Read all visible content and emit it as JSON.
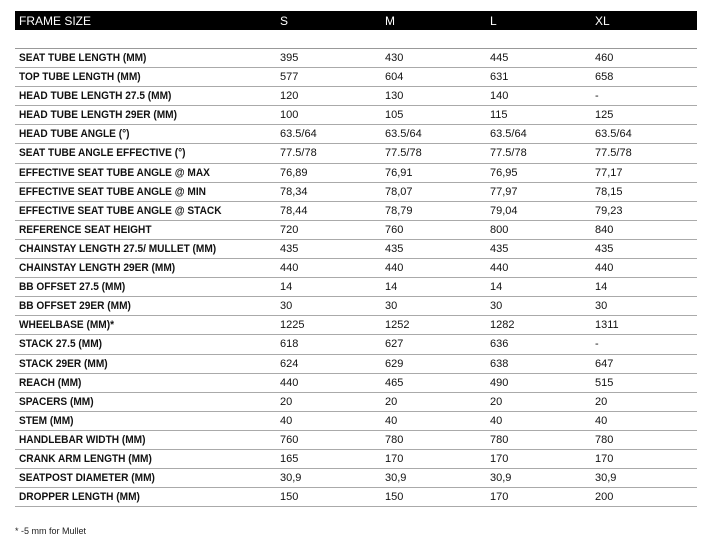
{
  "header": {
    "label": "FRAME SIZE",
    "sizes": [
      "S",
      "M",
      "L",
      "XL"
    ]
  },
  "rows": [
    {
      "label": "SEAT TUBE LENGTH (MM)",
      "values": [
        "395",
        "430",
        "445",
        "460"
      ]
    },
    {
      "label": "TOP TUBE LENGTH (MM)",
      "values": [
        "577",
        "604",
        "631",
        "658"
      ]
    },
    {
      "label": "HEAD TUBE LENGTH 27.5 (MM)",
      "values": [
        "120",
        "130",
        "140",
        "-"
      ]
    },
    {
      "label": "HEAD TUBE LENGTH 29ER (MM)",
      "values": [
        "100",
        "105",
        "115",
        "125"
      ]
    },
    {
      "label": "HEAD TUBE ANGLE (°)",
      "values": [
        "63.5/64",
        "63.5/64",
        "63.5/64",
        "63.5/64"
      ]
    },
    {
      "label": "SEAT TUBE ANGLE EFFECTIVE (°)",
      "values": [
        "77.5/78",
        "77.5/78",
        "77.5/78",
        "77.5/78"
      ]
    },
    {
      "label": "EFFECTIVE SEAT TUBE ANGLE @ MAX",
      "values": [
        "76,89",
        "76,91",
        "76,95",
        "77,17"
      ]
    },
    {
      "label": "EFFECTIVE SEAT TUBE ANGLE @ MIN",
      "values": [
        "78,34",
        "78,07",
        "77,97",
        "78,15"
      ]
    },
    {
      "label": "EFFECTIVE SEAT TUBE ANGLE @ STACK",
      "values": [
        "78,44",
        "78,79",
        "79,04",
        "79,23"
      ]
    },
    {
      "label": "REFERENCE SEAT HEIGHT",
      "values": [
        "720",
        "760",
        "800",
        "840"
      ]
    },
    {
      "label": "CHAINSTAY LENGTH 27.5/ MULLET (MM)",
      "values": [
        "435",
        "435",
        "435",
        "435"
      ]
    },
    {
      "label": "CHAINSTAY LENGTH 29ER (MM)",
      "values": [
        "440",
        "440",
        "440",
        "440"
      ]
    },
    {
      "label": "BB OFFSET 27.5 (MM)",
      "values": [
        "14",
        "14",
        "14",
        "14"
      ]
    },
    {
      "label": "BB OFFSET 29ER (MM)",
      "values": [
        "30",
        "30",
        "30",
        "30"
      ]
    },
    {
      "label": "WHEELBASE (MM)*",
      "values": [
        "1225",
        "1252",
        "1282",
        "1311"
      ]
    },
    {
      "label": "STACK 27.5 (MM)",
      "values": [
        "618",
        "627",
        "636",
        "-"
      ]
    },
    {
      "label": "STACK 29ER (MM)",
      "values": [
        "624",
        "629",
        "638",
        "647"
      ]
    },
    {
      "label": "REACH (MM)",
      "values": [
        "440",
        "465",
        "490",
        "515"
      ]
    },
    {
      "label": "SPACERS (MM)",
      "values": [
        "20",
        "20",
        "20",
        "20"
      ]
    },
    {
      "label": "STEM (MM)",
      "values": [
        "40",
        "40",
        "40",
        "40"
      ]
    },
    {
      "label": "HANDLEBAR WIDTH (MM)",
      "values": [
        "760",
        "780",
        "780",
        "780"
      ]
    },
    {
      "label": "CRANK ARM LENGTH (MM)",
      "values": [
        "165",
        "170",
        "170",
        "170"
      ]
    },
    {
      "label": "SEATPOST DIAMETER (MM)",
      "values": [
        "30,9",
        "30,9",
        "30,9",
        "30,9"
      ]
    },
    {
      "label": "DROPPER LENGTH (MM)",
      "values": [
        "150",
        "150",
        "170",
        "200"
      ]
    }
  ],
  "footnote": "* -5 mm for Mullet"
}
